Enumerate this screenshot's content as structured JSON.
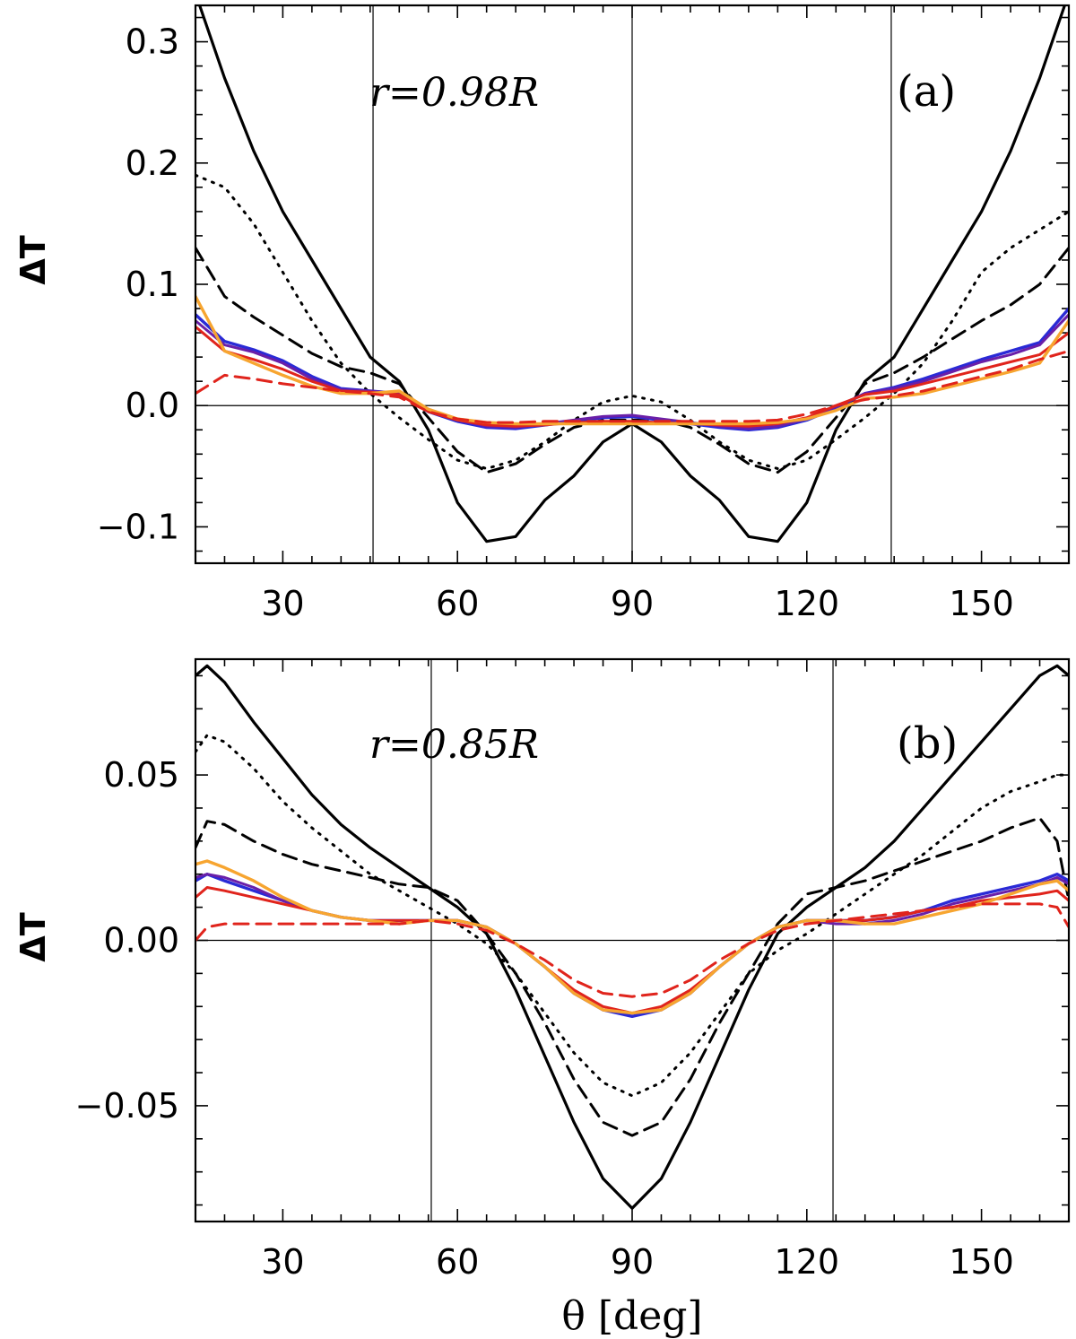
{
  "chart_data": [
    {
      "type": "line",
      "panel": "(a)",
      "annotation": "r=0.98R",
      "xlabel": "",
      "ylabel": "ΔT",
      "xlim": [
        15,
        165
      ],
      "ylim": [
        -0.13,
        0.33
      ],
      "xticks": [
        30,
        60,
        90,
        120,
        150
      ],
      "xtick_labels": [
        "30",
        "60",
        "90",
        "120",
        "150"
      ],
      "yticks": [
        -0.1,
        0.0,
        0.1,
        0.2,
        0.3
      ],
      "ytick_labels": [
        "−0.1",
        "0.0",
        "0.1",
        "0.2",
        "0.3"
      ],
      "vlines": [
        45.5,
        90,
        134.5
      ],
      "hline": 0,
      "x": [
        15,
        20,
        25,
        30,
        35,
        40,
        45,
        50,
        55,
        60,
        65,
        70,
        75,
        80,
        85,
        90,
        95,
        100,
        105,
        110,
        115,
        120,
        125,
        130,
        135,
        140,
        145,
        150,
        155,
        160,
        165
      ],
      "series": [
        {
          "name": "black solid",
          "color": "#000000",
          "dash": "solid",
          "width": 3.2,
          "values": [
            0.34,
            0.27,
            0.21,
            0.16,
            0.12,
            0.08,
            0.04,
            0.02,
            -0.02,
            -0.08,
            -0.112,
            -0.108,
            -0.078,
            -0.058,
            -0.03,
            -0.015,
            -0.03,
            -0.058,
            -0.078,
            -0.108,
            -0.112,
            -0.08,
            -0.02,
            0.02,
            0.04,
            0.08,
            0.12,
            0.16,
            0.21,
            0.27,
            0.34
          ]
        },
        {
          "name": "black dotted",
          "color": "#000000",
          "dash": "dot",
          "width": 3,
          "values": [
            0.19,
            0.18,
            0.15,
            0.11,
            0.07,
            0.035,
            0.01,
            -0.01,
            -0.028,
            -0.045,
            -0.052,
            -0.045,
            -0.03,
            -0.012,
            0.003,
            0.008,
            0.003,
            -0.012,
            -0.03,
            -0.045,
            -0.052,
            -0.045,
            -0.028,
            -0.01,
            0.01,
            0.035,
            0.07,
            0.11,
            0.13,
            0.145,
            0.16
          ]
        },
        {
          "name": "black dashed",
          "color": "#000000",
          "dash": "dash",
          "width": 3,
          "values": [
            0.13,
            0.09,
            0.073,
            0.058,
            0.043,
            0.032,
            0.027,
            0.018,
            -0.01,
            -0.038,
            -0.055,
            -0.048,
            -0.032,
            -0.018,
            -0.012,
            -0.012,
            -0.012,
            -0.018,
            -0.032,
            -0.048,
            -0.055,
            -0.038,
            -0.01,
            0.018,
            0.027,
            0.04,
            0.055,
            0.07,
            0.083,
            0.1,
            0.13
          ]
        },
        {
          "name": "blue solid",
          "color": "#2a2ad6",
          "dash": "solid",
          "width": 3.4,
          "values": [
            0.075,
            0.053,
            0.046,
            0.037,
            0.024,
            0.014,
            0.012,
            0.01,
            -0.005,
            -0.013,
            -0.018,
            -0.019,
            -0.016,
            -0.013,
            -0.01,
            -0.009,
            -0.012,
            -0.015,
            -0.018,
            -0.02,
            -0.018,
            -0.012,
            -0.002,
            0.01,
            0.015,
            0.022,
            0.03,
            0.038,
            0.045,
            0.052,
            0.08
          ]
        },
        {
          "name": "purple solid",
          "color": "#6a1fa8",
          "dash": "solid",
          "width": 3,
          "values": [
            0.07,
            0.05,
            0.044,
            0.035,
            0.022,
            0.013,
            0.012,
            0.01,
            -0.004,
            -0.012,
            -0.017,
            -0.018,
            -0.015,
            -0.012,
            -0.009,
            -0.008,
            -0.011,
            -0.014,
            -0.017,
            -0.019,
            -0.017,
            -0.011,
            -0.001,
            0.01,
            0.014,
            0.02,
            0.028,
            0.036,
            0.042,
            0.05,
            0.075
          ]
        },
        {
          "name": "red solid",
          "color": "#e0241c",
          "dash": "solid",
          "width": 3,
          "values": [
            0.065,
            0.045,
            0.038,
            0.03,
            0.02,
            0.012,
            0.011,
            0.009,
            -0.005,
            -0.012,
            -0.016,
            -0.017,
            -0.016,
            -0.014,
            -0.013,
            -0.013,
            -0.014,
            -0.015,
            -0.016,
            -0.017,
            -0.015,
            -0.01,
            0.0,
            0.009,
            0.012,
            0.018,
            0.024,
            0.03,
            0.036,
            0.042,
            0.06
          ]
        },
        {
          "name": "orange solid",
          "color": "#f7a530",
          "dash": "solid",
          "width": 3.4,
          "values": [
            0.09,
            0.045,
            0.035,
            0.025,
            0.016,
            0.01,
            0.01,
            0.012,
            -0.003,
            -0.011,
            -0.014,
            -0.015,
            -0.015,
            -0.015,
            -0.015,
            -0.015,
            -0.015,
            -0.015,
            -0.015,
            -0.015,
            -0.014,
            -0.011,
            -0.004,
            0.006,
            0.007,
            0.01,
            0.016,
            0.022,
            0.028,
            0.035,
            0.07
          ]
        },
        {
          "name": "red dashed",
          "color": "#e0241c",
          "dash": "dash",
          "width": 3,
          "values": [
            0.01,
            0.025,
            0.022,
            0.018,
            0.015,
            0.012,
            0.01,
            0.007,
            -0.005,
            -0.011,
            -0.014,
            -0.014,
            -0.013,
            -0.013,
            -0.013,
            -0.013,
            -0.013,
            -0.013,
            -0.013,
            -0.013,
            -0.012,
            -0.007,
            0.0,
            0.005,
            0.008,
            0.012,
            0.018,
            0.024,
            0.03,
            0.038,
            0.045
          ]
        }
      ]
    },
    {
      "type": "line",
      "panel": "(b)",
      "annotation": "r=0.85R",
      "xlabel": "θ [deg]",
      "ylabel": "ΔT",
      "xlim": [
        15,
        165
      ],
      "ylim": [
        -0.085,
        0.085
      ],
      "xticks": [
        30,
        60,
        90,
        120,
        150
      ],
      "xtick_labels": [
        "30",
        "60",
        "90",
        "120",
        "150"
      ],
      "yticks": [
        -0.05,
        0.0,
        0.05
      ],
      "ytick_labels": [
        "−0.05",
        "0.00",
        "0.05"
      ],
      "vlines": [
        55.5,
        124.5
      ],
      "hline": 0,
      "x": [
        15,
        17,
        20,
        25,
        30,
        35,
        40,
        45,
        50,
        55,
        60,
        65,
        70,
        75,
        80,
        85,
        90,
        95,
        100,
        105,
        110,
        115,
        120,
        125,
        130,
        135,
        140,
        145,
        150,
        155,
        160,
        163,
        165
      ],
      "series": [
        {
          "name": "black solid",
          "color": "#000000",
          "dash": "solid",
          "width": 3.2,
          "values": [
            0.08,
            0.083,
            0.078,
            0.066,
            0.055,
            0.044,
            0.035,
            0.028,
            0.022,
            0.016,
            0.01,
            0.002,
            -0.015,
            -0.035,
            -0.055,
            -0.072,
            -0.081,
            -0.072,
            -0.055,
            -0.035,
            -0.015,
            0.002,
            0.01,
            0.016,
            0.022,
            0.03,
            0.04,
            0.05,
            0.06,
            0.07,
            0.08,
            0.083,
            0.08
          ]
        },
        {
          "name": "black dotted",
          "color": "#000000",
          "dash": "dot",
          "width": 3,
          "values": [
            0.057,
            0.062,
            0.06,
            0.052,
            0.042,
            0.034,
            0.027,
            0.02,
            0.015,
            0.01,
            0.005,
            -0.001,
            -0.01,
            -0.022,
            -0.034,
            -0.043,
            -0.047,
            -0.043,
            -0.034,
            -0.022,
            -0.01,
            -0.003,
            0.002,
            0.008,
            0.014,
            0.02,
            0.026,
            0.033,
            0.04,
            0.045,
            0.048,
            0.05,
            0.05
          ]
        },
        {
          "name": "black dashed",
          "color": "#000000",
          "dash": "dash",
          "width": 3,
          "values": [
            0.028,
            0.036,
            0.035,
            0.03,
            0.026,
            0.023,
            0.021,
            0.019,
            0.017,
            0.016,
            0.012,
            0.002,
            -0.01,
            -0.025,
            -0.042,
            -0.055,
            -0.059,
            -0.055,
            -0.042,
            -0.025,
            -0.01,
            0.005,
            0.014,
            0.016,
            0.018,
            0.021,
            0.024,
            0.027,
            0.03,
            0.034,
            0.037,
            0.03,
            0.012
          ]
        },
        {
          "name": "blue solid",
          "color": "#2a2ad6",
          "dash": "solid",
          "width": 3.4,
          "values": [
            0.018,
            0.02,
            0.018,
            0.015,
            0.012,
            0.009,
            0.007,
            0.006,
            0.006,
            0.006,
            0.006,
            0.004,
            -0.001,
            -0.008,
            -0.016,
            -0.021,
            -0.023,
            -0.021,
            -0.016,
            -0.008,
            -0.001,
            0.004,
            0.006,
            0.006,
            0.006,
            0.007,
            0.009,
            0.012,
            0.014,
            0.016,
            0.018,
            0.02,
            0.018
          ]
        },
        {
          "name": "purple solid",
          "color": "#6a1fa8",
          "dash": "solid",
          "width": 3,
          "values": [
            0.019,
            0.02,
            0.019,
            0.016,
            0.012,
            0.009,
            0.007,
            0.006,
            0.005,
            0.006,
            0.006,
            0.004,
            -0.001,
            -0.008,
            -0.016,
            -0.021,
            -0.022,
            -0.021,
            -0.016,
            -0.008,
            -0.001,
            0.004,
            0.006,
            0.005,
            0.005,
            0.006,
            0.008,
            0.011,
            0.013,
            0.015,
            0.017,
            0.019,
            0.017
          ]
        },
        {
          "name": "red solid",
          "color": "#e0241c",
          "dash": "solid",
          "width": 3,
          "values": [
            0.013,
            0.016,
            0.015,
            0.013,
            0.011,
            0.009,
            0.007,
            0.006,
            0.006,
            0.006,
            0.006,
            0.004,
            -0.001,
            -0.008,
            -0.015,
            -0.02,
            -0.022,
            -0.02,
            -0.015,
            -0.008,
            -0.001,
            0.004,
            0.006,
            0.006,
            0.006,
            0.007,
            0.009,
            0.01,
            0.012,
            0.013,
            0.014,
            0.015,
            0.012
          ]
        },
        {
          "name": "orange solid",
          "color": "#f7a530",
          "dash": "solid",
          "width": 3.4,
          "values": [
            0.023,
            0.024,
            0.022,
            0.018,
            0.013,
            0.009,
            0.007,
            0.006,
            0.005,
            0.006,
            0.006,
            0.004,
            -0.001,
            -0.008,
            -0.016,
            -0.021,
            -0.022,
            -0.021,
            -0.016,
            -0.008,
            -0.001,
            0.004,
            0.006,
            0.006,
            0.005,
            0.005,
            0.007,
            0.009,
            0.011,
            0.014,
            0.017,
            0.018,
            0.015
          ]
        },
        {
          "name": "red dashed",
          "color": "#e0241c",
          "dash": "dash",
          "width": 3,
          "values": [
            0.0,
            0.004,
            0.005,
            0.005,
            0.005,
            0.005,
            0.005,
            0.005,
            0.005,
            0.006,
            0.005,
            0.003,
            -0.001,
            -0.006,
            -0.012,
            -0.016,
            -0.017,
            -0.016,
            -0.012,
            -0.006,
            -0.001,
            0.003,
            0.005,
            0.006,
            0.007,
            0.008,
            0.009,
            0.01,
            0.011,
            0.011,
            0.011,
            0.01,
            0.004
          ]
        }
      ]
    }
  ]
}
